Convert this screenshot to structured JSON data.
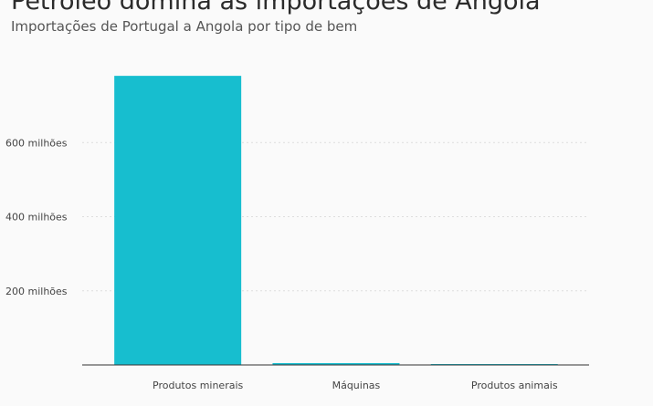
{
  "header": {
    "title": "Petróleo domina as importações de Angola",
    "subtitle": "Importações de Portugal a Angola por tipo de bem"
  },
  "colors": {
    "bar": "#17becf",
    "gridline": "#dddddd",
    "axis": "#333333",
    "tick_text": "#444444"
  },
  "chart_data": {
    "type": "bar",
    "title": "Petróleo domina as importações de Angola",
    "subtitle": "Importações de Portugal a Angola por tipo de bem",
    "categories": [
      "Produtos minerais",
      "Máquinas",
      "Produtos animais"
    ],
    "values": [
      780000000,
      5000000,
      600000
    ],
    "ylim": [
      0,
      800000000
    ],
    "yticks": [
      200000000,
      400000000,
      600000000
    ],
    "ytick_labels": [
      "200 milhões",
      "400 milhões",
      "600 milhões"
    ],
    "grid": true
  }
}
